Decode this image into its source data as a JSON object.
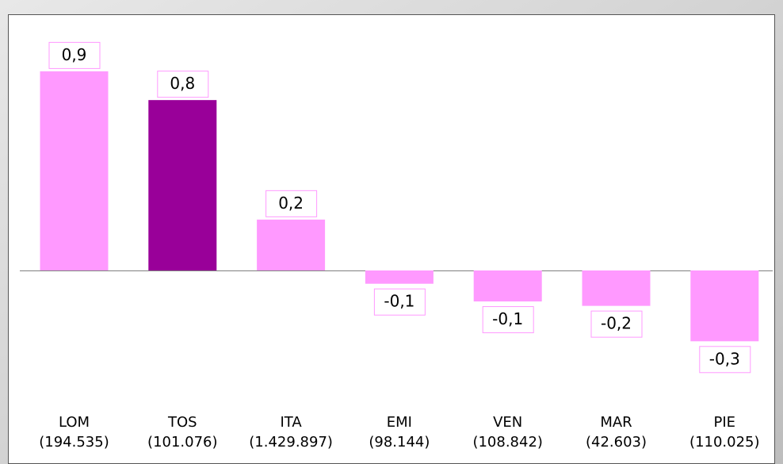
{
  "chart_data": {
    "type": "bar",
    "categories": [
      "LOM",
      "TOS",
      "ITA",
      "EMI",
      "VEN",
      "MAR",
      "PIE"
    ],
    "category_notes": [
      "(194.535)",
      "(101.076)",
      "(1.429.897)",
      "(98.144)",
      "(108.842)",
      "(42.603)",
      "(110.025)"
    ],
    "values": [
      0.9,
      0.77,
      0.23,
      -0.06,
      -0.14,
      -0.16,
      -0.32
    ],
    "value_labels": [
      "0,9",
      "0,8",
      "0,2",
      "-0,1",
      "-0,1",
      "-0,2",
      "-0,3"
    ],
    "colors": [
      "#ff99ff",
      "#990099",
      "#ff99ff",
      "#ff99ff",
      "#ff99ff",
      "#ff99ff",
      "#ff99ff"
    ],
    "label_border_color": "#ff99ff"
  }
}
